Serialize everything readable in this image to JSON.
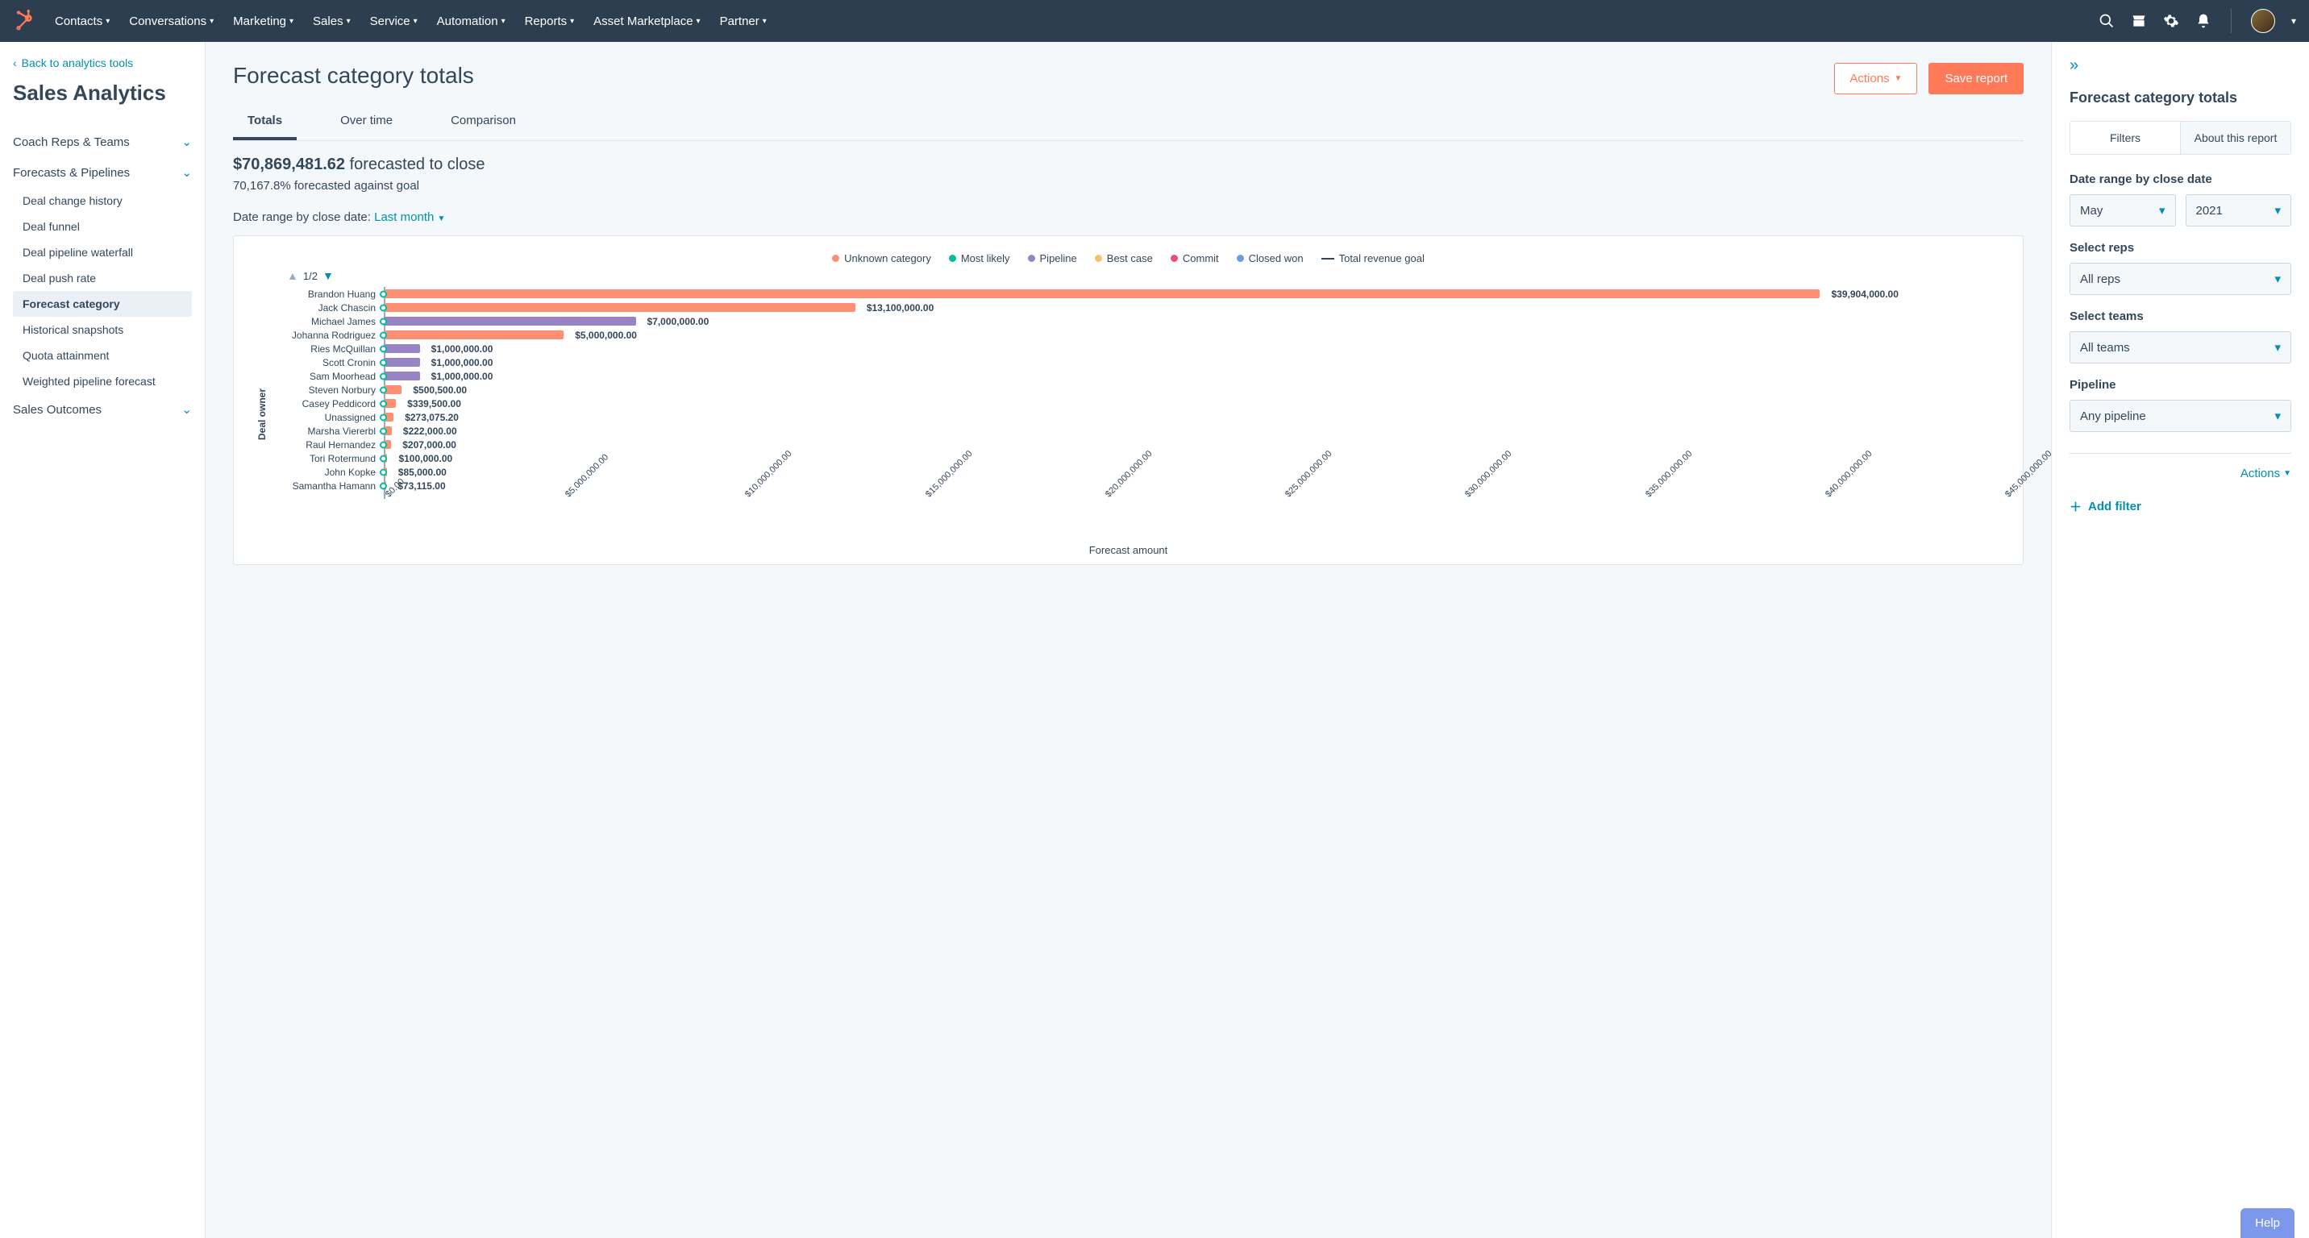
{
  "topnav": {
    "items": [
      "Contacts",
      "Conversations",
      "Marketing",
      "Sales",
      "Service",
      "Automation",
      "Reports",
      "Asset Marketplace",
      "Partner"
    ]
  },
  "sidebar": {
    "back": "Back to analytics tools",
    "title": "Sales Analytics",
    "sections": [
      {
        "label": "Coach Reps & Teams",
        "open": false
      },
      {
        "label": "Forecasts & Pipelines",
        "open": true,
        "items": [
          "Deal change history",
          "Deal funnel",
          "Deal pipeline waterfall",
          "Deal push rate",
          "Forecast category",
          "Historical snapshots",
          "Quota attainment",
          "Weighted pipeline forecast"
        ],
        "active": "Forecast category"
      },
      {
        "label": "Sales Outcomes",
        "open": false
      }
    ]
  },
  "main": {
    "title": "Forecast category totals",
    "actions_btn": "Actions",
    "save_btn": "Save report",
    "tabs": [
      "Totals",
      "Over time",
      "Comparison"
    ],
    "active_tab": "Totals",
    "summary_amount": "$70,869,481.62",
    "summary_text": "forecasted to close",
    "sub_summary": "70,167.8% forecasted against goal",
    "daterange_label": "Date range by close date:",
    "daterange_value": "Last month"
  },
  "chart": {
    "legend": [
      {
        "label": "Unknown category",
        "color": "#ff8f73",
        "type": "dot"
      },
      {
        "label": "Most likely",
        "color": "#00bda5",
        "type": "dot"
      },
      {
        "label": "Pipeline",
        "color": "#9784c2",
        "type": "dot"
      },
      {
        "label": "Best case",
        "color": "#f5c26b",
        "type": "dot"
      },
      {
        "label": "Commit",
        "color": "#ea4e7a",
        "type": "dot"
      },
      {
        "label": "Closed won",
        "color": "#6a9de0",
        "type": "dot"
      },
      {
        "label": "Total revenue goal",
        "color": "#33475b",
        "type": "line"
      }
    ],
    "pager": "1/2",
    "ylabel": "Deal owner",
    "xlabel": "Forecast amount",
    "xmax": 45000000,
    "xticks": [
      "$0.00",
      "$5,000,000.00",
      "$10,000,000.00",
      "$15,000,000.00",
      "$20,000,000.00",
      "$25,000,000.00",
      "$30,000,000.00",
      "$35,000,000.00",
      "$40,000,000.00",
      "$45,000,000.00"
    ],
    "rows": [
      {
        "name": "Brandon Huang",
        "value": 39904000,
        "label": "$39,904,000.00",
        "color": "#ff8f73"
      },
      {
        "name": "Jack Chascin",
        "value": 13100000,
        "label": "$13,100,000.00",
        "color": "#ff8f73"
      },
      {
        "name": "Michael James",
        "value": 7000000,
        "label": "$7,000,000.00",
        "color": "#9784c2"
      },
      {
        "name": "Johanna Rodriguez",
        "value": 5000000,
        "label": "$5,000,000.00",
        "color": "#ff8f73"
      },
      {
        "name": "Ries McQuillan",
        "value": 1000000,
        "label": "$1,000,000.00",
        "color": "#9784c2"
      },
      {
        "name": "Scott Cronin",
        "value": 1000000,
        "label": "$1,000,000.00",
        "color": "#9784c2"
      },
      {
        "name": "Sam Moorhead",
        "value": 1000000,
        "label": "$1,000,000.00",
        "color": "#9784c2"
      },
      {
        "name": "Steven Norbury",
        "value": 500500,
        "label": "$500,500.00",
        "color": "#ff8f73"
      },
      {
        "name": "Casey Peddicord",
        "value": 339500,
        "label": "$339,500.00",
        "color": "#ff8f73"
      },
      {
        "name": "Unassigned",
        "value": 273075,
        "label": "$273,075.20",
        "color": "#ff8f73"
      },
      {
        "name": "Marsha Viererbl",
        "value": 222000,
        "label": "$222,000.00",
        "color": "#ff8f73"
      },
      {
        "name": "Raul Hernandez",
        "value": 207000,
        "label": "$207,000.00",
        "color": "#ff8f73"
      },
      {
        "name": "Tori Rotermund",
        "value": 100000,
        "label": "$100,000.00",
        "color": "#ff8f73"
      },
      {
        "name": "John Kopke",
        "value": 85000,
        "label": "$85,000.00",
        "color": "#ff8f73"
      },
      {
        "name": "Samantha Hamann",
        "value": 73115,
        "label": "$73,115.00",
        "color": "#ff8f73"
      }
    ]
  },
  "right": {
    "title": "Forecast category totals",
    "tabs": [
      "Filters",
      "About this report"
    ],
    "active_tab": "Filters",
    "daterange_label": "Date range by close date",
    "month": "May",
    "year": "2021",
    "reps_label": "Select reps",
    "reps_value": "All reps",
    "teams_label": "Select teams",
    "teams_value": "All teams",
    "pipeline_label": "Pipeline",
    "pipeline_value": "Any pipeline",
    "actions": "Actions",
    "add_filter": "Add filter"
  },
  "help": "Help"
}
